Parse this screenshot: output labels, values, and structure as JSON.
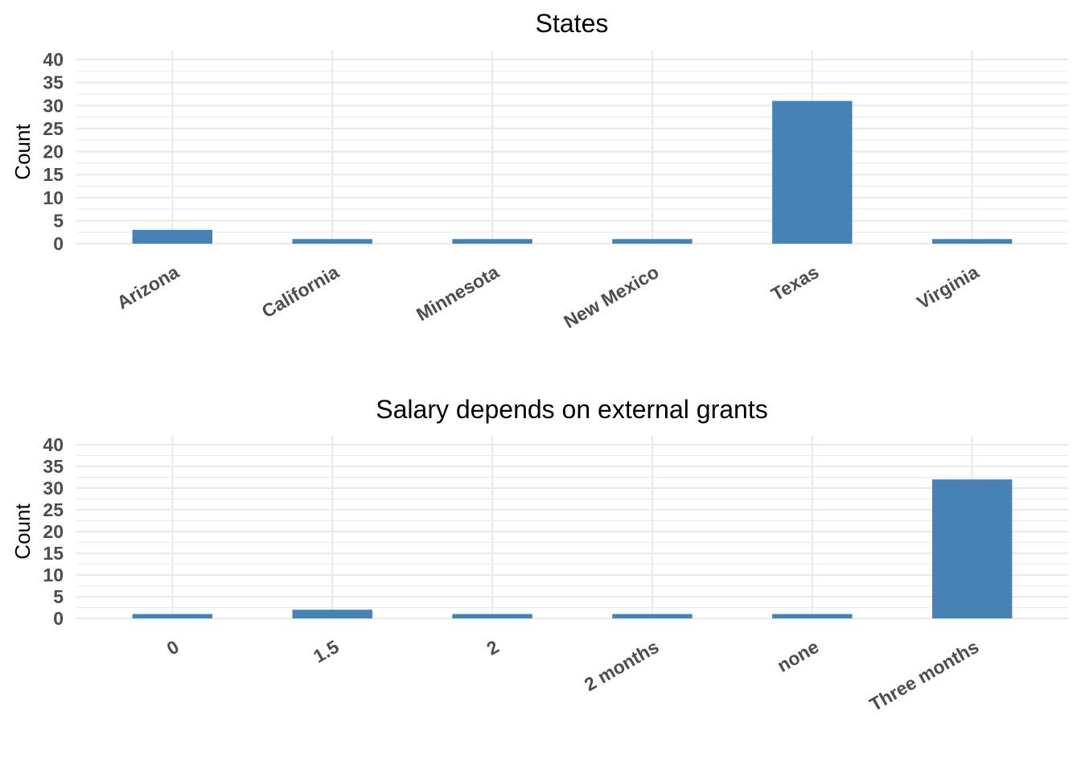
{
  "colors": {
    "bar": "#4682b4",
    "grid": "#ebebeb",
    "tick_text": "#4d4d4d",
    "title_text": "#000000"
  },
  "chart_data": [
    {
      "type": "bar",
      "title": "States",
      "xlabel": "",
      "ylabel": "Count",
      "ylim": [
        0,
        40
      ],
      "yticks": [
        0,
        5,
        10,
        15,
        20,
        25,
        30,
        35,
        40
      ],
      "categories": [
        "Arizona",
        "California",
        "Minnesota",
        "New Mexico",
        "Texas",
        "Virginia"
      ],
      "values": [
        3,
        1,
        1,
        1,
        31,
        1
      ],
      "grid": true,
      "legend": "none"
    },
    {
      "type": "bar",
      "title": "Salary depends on external grants",
      "xlabel": "",
      "ylabel": "Count",
      "ylim": [
        0,
        40
      ],
      "yticks": [
        0,
        5,
        10,
        15,
        20,
        25,
        30,
        35,
        40
      ],
      "categories": [
        "0",
        "1.5",
        "2",
        "2 months",
        "none",
        "Three months"
      ],
      "values": [
        1,
        2,
        1,
        1,
        1,
        32
      ],
      "grid": true,
      "legend": "none"
    }
  ]
}
